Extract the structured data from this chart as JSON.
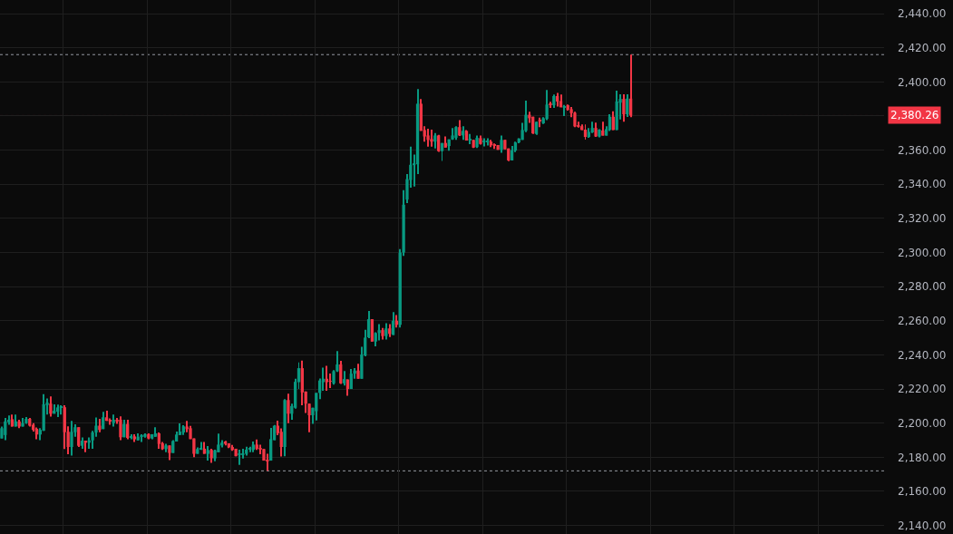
{
  "chart_data": {
    "type": "candlestick",
    "categories": [
      null,
      null,
      null,
      null,
      null,
      null,
      null,
      null,
      null,
      null,
      null,
      null,
      null,
      null,
      null,
      null,
      null,
      null,
      null,
      null,
      null,
      null,
      null,
      null,
      null,
      null,
      null,
      null,
      null,
      null,
      null,
      null,
      null,
      null,
      null,
      null,
      null,
      null,
      null,
      null,
      null,
      null,
      null,
      null,
      null,
      null,
      null,
      null,
      null,
      null,
      null,
      null,
      null,
      null,
      null,
      null,
      null,
      null,
      null,
      null,
      null,
      null,
      null,
      null,
      null,
      null,
      null,
      null,
      null,
      null,
      null,
      null,
      null,
      null,
      null,
      null,
      null,
      null,
      null,
      null,
      null,
      null,
      null,
      null,
      null,
      null,
      null,
      null,
      null,
      null,
      null,
      null,
      null,
      null,
      null,
      null,
      null,
      null,
      null,
      null,
      null,
      null,
      null,
      null,
      null,
      null,
      null,
      null,
      null,
      null,
      null,
      null,
      null,
      null,
      null,
      null,
      null,
      null,
      null,
      null,
      null,
      null,
      null,
      null,
      null,
      null,
      null,
      null,
      null,
      null,
      null,
      null,
      null,
      null,
      null,
      null,
      null,
      null,
      null,
      null,
      null,
      null,
      null,
      null,
      null,
      null,
      null,
      null,
      null,
      null,
      null,
      null,
      null,
      null,
      null,
      null,
      null,
      null,
      null,
      null,
      null,
      null,
      null,
      null,
      null,
      null,
      null,
      null,
      null,
      null,
      null,
      null,
      null,
      null,
      null,
      null,
      null,
      null,
      null,
      null,
      null,
      null,
      null,
      null,
      null,
      null,
      null,
      null,
      null,
      null,
      null,
      null,
      null,
      null,
      null,
      null,
      null,
      null,
      null,
      null,
      null,
      null,
      null,
      null,
      null,
      null,
      null,
      null,
      null,
      null,
      null,
      null,
      null,
      null,
      null,
      null,
      null,
      null,
      null,
      null,
      null,
      null,
      null,
      null,
      null,
      null,
      null,
      null,
      null,
      null,
      null,
      null,
      null,
      null,
      null,
      null,
      null,
      null,
      null,
      null,
      null,
      null,
      null,
      null,
      null,
      null,
      null,
      null,
      null,
      null,
      null,
      null,
      null
    ],
    "ohlc": [
      [
        2191,
        2198,
        2191,
        2197
      ],
      [
        2193,
        2203,
        2190,
        2201
      ],
      [
        2200.5,
        2204.5,
        2199,
        2202
      ],
      [
        2202.3,
        2205,
        2198,
        2198
      ],
      [
        2198,
        2205,
        2198,
        2201
      ],
      [
        2201,
        2202,
        2197,
        2198
      ],
      [
        2198,
        2203,
        2198,
        2200
      ],
      [
        2200,
        2203.5,
        2199.5,
        2202.5
      ],
      [
        2202.5,
        2203,
        2198,
        2198.5
      ],
      [
        2199,
        2200,
        2195,
        2196
      ],
      [
        2196.7,
        2197.5,
        2190.5,
        2193.3
      ],
      [
        2193.3,
        2197,
        2190,
        2196
      ],
      [
        2195.5,
        2217,
        2195.5,
        2211
      ],
      [
        2210.5,
        2214.5,
        2205,
        2212
      ],
      [
        2211.4,
        2215.6,
        2203.8,
        2205.5
      ],
      [
        2205.5,
        2211,
        2205.5,
        2207.3
      ],
      [
        2206.7,
        2210.9,
        2203.6,
        2209.2
      ],
      [
        2209,
        2210.5,
        2205,
        2209.5
      ],
      [
        2209.3,
        2210.4,
        2184.8,
        2194.7
      ],
      [
        2194.9,
        2198.1,
        2181.7,
        2186
      ],
      [
        2186,
        2201.3,
        2181,
        2194.9
      ],
      [
        2194.7,
        2199.3,
        2192,
        2197.6
      ],
      [
        2197.6,
        2197.6,
        2186,
        2186.7
      ],
      [
        2186.7,
        2191.6,
        2185,
        2189.7
      ],
      [
        2189.7,
        2189.7,
        2183,
        2188.5
      ],
      [
        2188.5,
        2191.6,
        2185,
        2189.9
      ],
      [
        2189.9,
        2195.5,
        2185,
        2194.5
      ],
      [
        2194.5,
        2203.3,
        2192,
        2198.5
      ],
      [
        2198.5,
        2202.5,
        2194.7,
        2196
      ],
      [
        2196.5,
        2206.6,
        2196.5,
        2203.4
      ],
      [
        2203.4,
        2207.3,
        2201.3,
        2201.3
      ],
      [
        2201.5,
        2202.8,
        2199,
        2201
      ],
      [
        2200,
        2205,
        2198,
        2202
      ],
      [
        2202,
        2203,
        2199.5,
        2201
      ],
      [
        2202,
        2204,
        2190,
        2191.7
      ],
      [
        2191.7,
        2202,
        2191.7,
        2199.5
      ],
      [
        2199.5,
        2202,
        2190.5,
        2191.3
      ],
      [
        2191.7,
        2193.5,
        2190.5,
        2192.2
      ],
      [
        2192.2,
        2193.5,
        2189,
        2190.5
      ],
      [
        2189.9,
        2194,
        2189.9,
        2192
      ],
      [
        2192,
        2193.5,
        2189,
        2192.5
      ],
      [
        2192,
        2194,
        2191.5,
        2193.5
      ],
      [
        2193.5,
        2194,
        2190.5,
        2191
      ],
      [
        2191,
        2193.5,
        2190.5,
        2193.5
      ],
      [
        2192,
        2197.6,
        2192,
        2194
      ],
      [
        2194,
        2194.5,
        2185,
        2187.8
      ],
      [
        2188.2,
        2189,
        2184.3,
        2184.8
      ],
      [
        2184.8,
        2187.9,
        2183,
        2186.9
      ],
      [
        2186.9,
        2186.9,
        2178.3,
        2182.5
      ],
      [
        2182.5,
        2190,
        2182.5,
        2189.5
      ],
      [
        2189.2,
        2195,
        2189.2,
        2193.3
      ],
      [
        2193,
        2199.8,
        2193,
        2195
      ],
      [
        2194.5,
        2198.8,
        2193,
        2198.1
      ],
      [
        2198,
        2201.3,
        2194.7,
        2196.5
      ],
      [
        2197,
        2198.4,
        2190.6,
        2190.6
      ],
      [
        2191,
        2191,
        2180,
        2182
      ],
      [
        2182,
        2185.7,
        2182,
        2184.8
      ],
      [
        2184.8,
        2189,
        2184.3,
        2185.3
      ],
      [
        2185,
        2189,
        2182,
        2182
      ],
      [
        2182,
        2186.6,
        2178,
        2184.2
      ],
      [
        2184.3,
        2185,
        2176.7,
        2179.4
      ],
      [
        2179.3,
        2184.4,
        2177.6,
        2184
      ],
      [
        2182.9,
        2193.8,
        2182.9,
        2187.4
      ],
      [
        2186.9,
        2190,
        2185.8,
        2188.6
      ],
      [
        2189.2,
        2189.6,
        2186.9,
        2187.8
      ],
      [
        2188.2,
        2188.2,
        2185.3,
        2185.8
      ],
      [
        2186,
        2187.2,
        2183.8,
        2184.3
      ],
      [
        2185,
        2185,
        2180.6,
        2180.6
      ],
      [
        2181.5,
        2184.4,
        2175.5,
        2182
      ],
      [
        2181.6,
        2184.9,
        2179.2,
        2182.2
      ],
      [
        2182,
        2186.2,
        2181,
        2184.4
      ],
      [
        2184.6,
        2186.1,
        2183,
        2185.3
      ],
      [
        2184.3,
        2189.2,
        2183,
        2187.4
      ],
      [
        2187.4,
        2190.4,
        2184.3,
        2185
      ],
      [
        2185.3,
        2187.4,
        2181.8,
        2184.5
      ],
      [
        2184.8,
        2184.8,
        2178,
        2178
      ],
      [
        2178.5,
        2182,
        2172,
        2178
      ],
      [
        2178,
        2197.2,
        2178,
        2190.6
      ],
      [
        2190,
        2198.9,
        2190,
        2198.5
      ],
      [
        2198.5,
        2201.4,
        2192.9,
        2194.1
      ],
      [
        2194.9,
        2196.9,
        2180.5,
        2186
      ],
      [
        2186,
        2214,
        2180.6,
        2213.5
      ],
      [
        2213.5,
        2217.3,
        2200,
        2205.5
      ],
      [
        2205.5,
        2211.4,
        2202,
        2210
      ],
      [
        2209,
        2226,
        2208.5,
        2224.2
      ],
      [
        2224,
        2235.6,
        2220,
        2232.2
      ],
      [
        2232.2,
        2236.6,
        2210.4,
        2218
      ],
      [
        2218.5,
        2218.5,
        2206,
        2211.4
      ],
      [
        2211.4,
        2211.4,
        2194.7,
        2204.6
      ],
      [
        2204.6,
        2209,
        2199.5,
        2209
      ],
      [
        2207,
        2217.7,
        2201.5,
        2217.7
      ],
      [
        2217.7,
        2226.2,
        2214,
        2225
      ],
      [
        2224,
        2232.5,
        2219,
        2226
      ],
      [
        2226,
        2233.6,
        2219,
        2224
      ],
      [
        2224.6,
        2229,
        2220.5,
        2224.4
      ],
      [
        2223.3,
        2231,
        2222.6,
        2230.4
      ],
      [
        2230.4,
        2242.2,
        2230,
        2234.4
      ],
      [
        2234.4,
        2236.5,
        2223,
        2223.3
      ],
      [
        2223.3,
        2230.5,
        2222,
        2225.8
      ],
      [
        2225.6,
        2225.6,
        2216,
        2220
      ],
      [
        2220,
        2231.7,
        2220,
        2229
      ],
      [
        2229,
        2232.3,
        2226,
        2230.8
      ],
      [
        2230.8,
        2234.8,
        2226,
        2226
      ],
      [
        2226,
        2244.7,
        2226,
        2240.2
      ],
      [
        2239.7,
        2254.7,
        2239.2,
        2250.1
      ],
      [
        2250.3,
        2265.7,
        2249.8,
        2260.9
      ],
      [
        2260.9,
        2260.9,
        2247.8,
        2247.8
      ],
      [
        2247.8,
        2253.3,
        2245,
        2252.8
      ],
      [
        2252.8,
        2258,
        2248.5,
        2254.5
      ],
      [
        2254.5,
        2255.7,
        2249,
        2251
      ],
      [
        2251,
        2258.6,
        2249,
        2255.5
      ],
      [
        2255.5,
        2258,
        2250.5,
        2252.3
      ],
      [
        2251.7,
        2265,
        2251.7,
        2260
      ],
      [
        2260,
        2263.4,
        2256,
        2257.6
      ],
      [
        2257.6,
        2302,
        2256,
        2300
      ],
      [
        2300,
        2336.6,
        2298,
        2328
      ],
      [
        2331,
        2346,
        2329,
        2343
      ],
      [
        2342.5,
        2362,
        2338,
        2351.4
      ],
      [
        2351.2,
        2357.4,
        2338.6,
        2352.3
      ],
      [
        2351.7,
        2395.8,
        2346,
        2387.2
      ],
      [
        2387.2,
        2389.9,
        2371.3,
        2371.3
      ],
      [
        2371.8,
        2374,
        2365,
        2368
      ],
      [
        2368.6,
        2372.6,
        2362,
        2366
      ],
      [
        2366.5,
        2372,
        2362,
        2365
      ],
      [
        2365,
        2370,
        2361,
        2368.6
      ],
      [
        2368.6,
        2369,
        2359,
        2359.4
      ],
      [
        2359.4,
        2364.2,
        2353.7,
        2364.2
      ],
      [
        2364.2,
        2368,
        2361.5,
        2361.5
      ],
      [
        2362.4,
        2366.3,
        2359.6,
        2366.3
      ],
      [
        2366.3,
        2373,
        2366,
        2368.6
      ],
      [
        2367.2,
        2374,
        2366,
        2373.5
      ],
      [
        2373.5,
        2377.6,
        2368.3,
        2368.6
      ],
      [
        2368.6,
        2374,
        2366,
        2371.3
      ],
      [
        2371.3,
        2371.8,
        2365.6,
        2365.6
      ],
      [
        2365.8,
        2369.5,
        2363.5,
        2366.2
      ],
      [
        2366,
        2366,
        2361.2,
        2361.5
      ],
      [
        2361.8,
        2368.5,
        2361.3,
        2367.2
      ],
      [
        2367,
        2368.6,
        2363.3,
        2363.6
      ],
      [
        2364.8,
        2367,
        2362.2,
        2365.3
      ],
      [
        2364.8,
        2367,
        2362.7,
        2365.3
      ],
      [
        2365,
        2366,
        2361.8,
        2362.8
      ],
      [
        2363,
        2363.9,
        2360.7,
        2362.5
      ],
      [
        2363,
        2363,
        2360.2,
        2360.2
      ],
      [
        2360.2,
        2368.6,
        2358.4,
        2366
      ],
      [
        2366,
        2366,
        2360.5,
        2360.5
      ],
      [
        2361,
        2361,
        2353.5,
        2354
      ],
      [
        2354,
        2362.4,
        2354,
        2360
      ],
      [
        2359.7,
        2365,
        2358.8,
        2364.5
      ],
      [
        2364.5,
        2367,
        2364,
        2366.8
      ],
      [
        2366,
        2376,
        2366,
        2371.8
      ],
      [
        2371.3,
        2389,
        2370.5,
        2380.7
      ],
      [
        2380.7,
        2382.5,
        2376,
        2378.7
      ],
      [
        2379.6,
        2379.6,
        2369.5,
        2369.8
      ],
      [
        2369.5,
        2376.6,
        2369,
        2376.6
      ],
      [
        2377.5,
        2379.1,
        2373.5,
        2377
      ],
      [
        2375.7,
        2379.3,
        2375.3,
        2378.7
      ],
      [
        2378.3,
        2395.2,
        2377.6,
        2386.7
      ],
      [
        2387,
        2388.3,
        2384.8,
        2386.5
      ],
      [
        2386.3,
        2392.6,
        2384.8,
        2391.7
      ],
      [
        2391.7,
        2393.5,
        2385.6,
        2388.5
      ],
      [
        2388.8,
        2392.6,
        2385.1,
        2385.1
      ],
      [
        2384.9,
        2386.5,
        2380,
        2385.5
      ],
      [
        2386.3,
        2386.8,
        2383.2,
        2383.7
      ],
      [
        2384,
        2385.3,
        2379.3,
        2381.7
      ],
      [
        2381.9,
        2382.5,
        2373.5,
        2373.9
      ],
      [
        2374.5,
        2376.6,
        2373.2,
        2373.9
      ],
      [
        2374,
        2375,
        2371.8,
        2371.8
      ],
      [
        2372,
        2375,
        2366.2,
        2367.7
      ],
      [
        2367.7,
        2373,
        2367.2,
        2370.7
      ],
      [
        2370.4,
        2376.6,
        2370,
        2373
      ],
      [
        2373,
        2376.1,
        2367.7,
        2368
      ],
      [
        2368,
        2372.3,
        2367.5,
        2372
      ],
      [
        2371.5,
        2376.6,
        2368.5,
        2368.5
      ],
      [
        2368.5,
        2374,
        2368.5,
        2372.3
      ],
      [
        2371.8,
        2381,
        2371.2,
        2379.6
      ],
      [
        2379.6,
        2382.8,
        2371.8,
        2371.8
      ],
      [
        2371.8,
        2394.9,
        2371.8,
        2388.5
      ],
      [
        2387.8,
        2392.7,
        2378,
        2390
      ],
      [
        2390,
        2392.7,
        2376.7,
        2381
      ],
      [
        2381,
        2392.7,
        2379.5,
        2390.2
      ],
      [
        2390.2,
        2416,
        2379.3,
        2380.26
      ],
      null,
      null,
      null,
      null,
      null,
      null,
      null,
      null,
      null,
      null,
      null,
      null,
      null,
      null,
      null,
      null,
      null,
      null,
      null,
      null,
      null,
      null,
      null,
      null,
      null,
      null,
      null,
      null,
      null,
      null,
      null,
      null,
      null,
      null,
      null,
      null,
      null,
      null,
      null,
      null,
      null,
      null,
      null,
      null,
      null,
      null,
      null,
      null,
      null,
      null,
      null,
      null,
      null,
      null,
      null,
      null,
      null,
      null,
      null,
      null,
      null,
      null,
      null,
      null,
      null,
      null,
      null,
      null,
      null,
      null,
      null,
      null
    ],
    "colors": [
      "#089981",
      "#089981",
      "#089981",
      "#f23645",
      "#089981",
      "#f23645",
      "#089981",
      "#089981",
      "#f23645",
      "#f23645",
      "#f23645",
      "#089981",
      "#089981",
      "#089981",
      "#f23645",
      "#089981",
      "#089981",
      "#089981",
      "#f23645",
      "#f23645",
      "#089981",
      "#089981",
      "#f23645",
      "#089981",
      "#f23645",
      "#089981",
      "#089981",
      "#089981",
      "#f23645",
      "#089981",
      "#f23645",
      "#f23645",
      "#089981",
      "#f23645",
      "#f23645",
      "#089981",
      "#f23645",
      "#089981",
      "#f23645",
      "#089981",
      "#089981",
      "#089981",
      "#f23645",
      "#089981",
      "#089981",
      "#f23645",
      "#f23645",
      "#089981",
      "#f23645",
      "#089981",
      "#089981",
      "#089981",
      "#089981",
      "#f23645",
      "#f23645",
      "#f23645",
      "#089981",
      "#089981",
      "#f23645",
      "#089981",
      "#f23645",
      "#089981",
      "#089981",
      "#089981",
      "#f23645",
      "#f23645",
      "#f23645",
      "#f23645",
      "#089981",
      "#089981",
      "#089981",
      "#089981",
      "#089981",
      "#f23645",
      "#f23645",
      "#f23645",
      "#f23645",
      "#089981",
      "#089981",
      "#f23645",
      "#f23645",
      "#089981",
      "#f23645",
      "#089981",
      "#089981",
      "#089981",
      "#f23645",
      "#f23645",
      "#f23645",
      "#089981",
      "#089981",
      "#089981",
      "#089981",
      "#f23645",
      "#f23645",
      "#089981",
      "#089981",
      "#f23645",
      "#089981",
      "#f23645",
      "#089981",
      "#089981",
      "#f23645",
      "#089981",
      "#089981",
      "#089981",
      "#f23645",
      "#089981",
      "#089981",
      "#f23645",
      "#089981",
      "#f23645",
      "#089981",
      "#f23645",
      "#089981",
      "#089981",
      "#089981",
      "#089981",
      "#089981",
      "#089981",
      "#f23645",
      "#f23645",
      "#f23645",
      "#f23645",
      "#089981",
      "#f23645",
      "#089981",
      "#f23645",
      "#089981",
      "#089981",
      "#089981",
      "#f23645",
      "#089981",
      "#f23645",
      "#089981",
      "#f23645",
      "#089981",
      "#f23645",
      "#089981",
      "#089981",
      "#f23645",
      "#f23645",
      "#f23645",
      "#089981",
      "#f23645",
      "#f23645",
      "#089981",
      "#089981",
      "#089981",
      "#089981",
      "#089981",
      "#f23645",
      "#f23645",
      "#089981",
      "#f23645",
      "#089981",
      "#089981",
      "#f23645",
      "#089981",
      "#f23645",
      "#f23645",
      "#089981",
      "#f23645",
      "#f23645",
      "#f23645",
      "#f23645",
      "#f23645",
      "#f23645",
      "#089981",
      "#089981",
      "#f23645",
      "#089981",
      "#f23645",
      "#089981",
      "#089981",
      "#f23645",
      "#089981",
      "#089981",
      "#f23645",
      "#089981",
      "#f23645",
      null,
      null,
      null,
      null,
      null,
      null,
      null,
      null,
      null,
      null,
      null,
      null,
      null,
      null,
      null,
      null,
      null,
      null,
      null,
      null,
      null,
      null,
      null,
      null,
      null,
      null,
      null,
      null,
      null,
      null,
      null,
      null,
      null,
      null,
      null,
      null,
      null,
      null,
      null,
      null,
      null,
      null,
      null,
      null,
      null,
      null,
      null,
      null,
      null,
      null,
      null,
      null,
      null,
      null,
      null,
      null,
      null,
      null,
      null,
      null,
      null,
      null,
      null,
      null,
      null,
      null,
      null,
      null,
      null,
      null,
      null,
      null
    ],
    "ylim": [
      2135,
      2448
    ],
    "yticks": [
      {
        "value": 2140,
        "label": "2,140.00"
      },
      {
        "value": 2160,
        "label": "2,160.00"
      },
      {
        "value": 2180,
        "label": "2,180.00"
      },
      {
        "value": 2200,
        "label": "2,200.00"
      },
      {
        "value": 2220,
        "label": "2,220.00"
      },
      {
        "value": 2240,
        "label": "2,240.00"
      },
      {
        "value": 2260,
        "label": "2,260.00"
      },
      {
        "value": 2280,
        "label": "2,280.00"
      },
      {
        "value": 2300,
        "label": "2,300.00"
      },
      {
        "value": 2320,
        "label": "2,320.00"
      },
      {
        "value": 2340,
        "label": "2,340.00"
      },
      {
        "value": 2360,
        "label": "2,360.00"
      },
      {
        "value": 2380,
        "label": null
      },
      {
        "value": 2400,
        "label": "2,400.00"
      },
      {
        "value": 2420,
        "label": "2,420.00"
      },
      {
        "value": 2440,
        "label": "2,440.00"
      }
    ],
    "ref_lines": [
      {
        "axis": "y",
        "value": 2416,
        "color": "#9598a1",
        "line_style": "dotted"
      },
      {
        "axis": "y",
        "value": 2380.26,
        "label": "2,380.26",
        "color": "#f23645",
        "line_style": "dotted"
      },
      {
        "axis": "y",
        "value": 2172,
        "color": "#9598a1",
        "line_style": "dotted"
      }
    ],
    "grid": true,
    "tick_labels": "y"
  }
}
